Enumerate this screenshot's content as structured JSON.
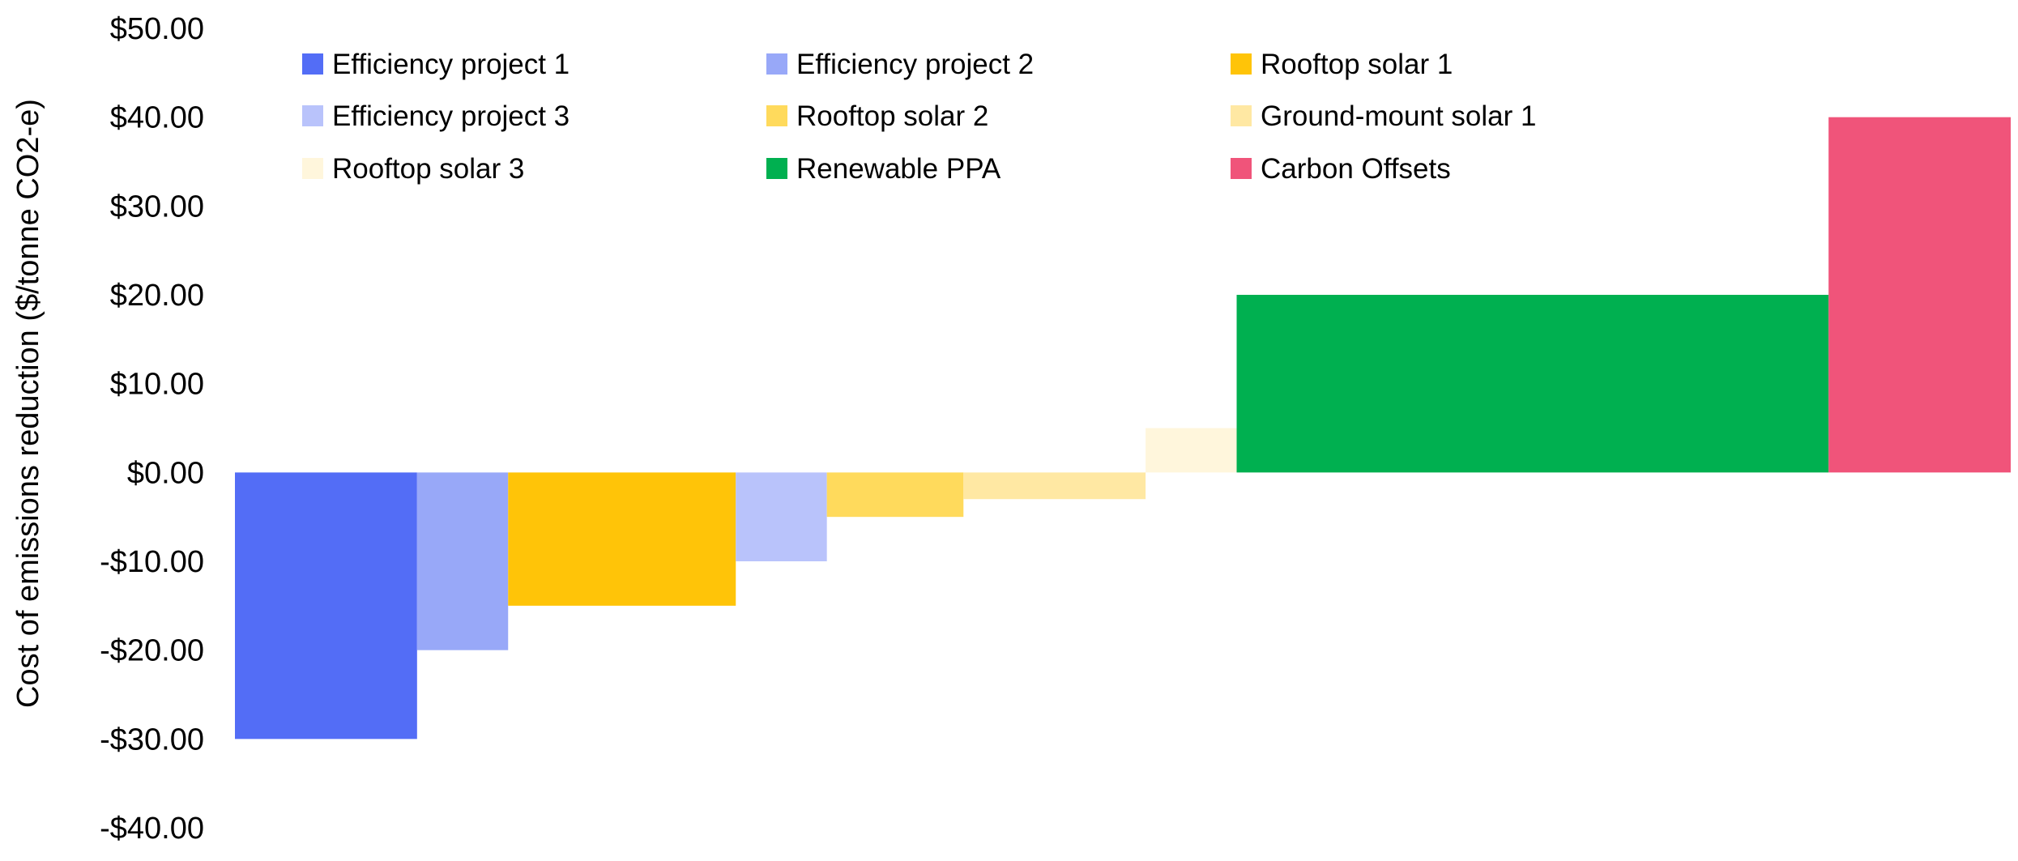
{
  "chart_data": {
    "type": "bar",
    "variant": "marginal-abatement-cost-curve",
    "ylabel": "Cost of emissions reduction ($/tonne CO2-e)",
    "xlabel": "",
    "ylim": [
      -40,
      50
    ],
    "y_ticks": [
      {
        "value": 50,
        "label": "$50.00"
      },
      {
        "value": 40,
        "label": "$40.00"
      },
      {
        "value": 30,
        "label": "$30.00"
      },
      {
        "value": 20,
        "label": "$20.00"
      },
      {
        "value": 10,
        "label": "$10.00"
      },
      {
        "value": 0,
        "label": "$0.00"
      },
      {
        "value": -10,
        "label": "-$10.00"
      },
      {
        "value": -20,
        "label": "-$20.00"
      },
      {
        "value": -30,
        "label": "-$30.00"
      },
      {
        "value": -40,
        "label": "-$40.00"
      }
    ],
    "grid": false,
    "legend_position": "top",
    "series": [
      {
        "name": "Efficiency project 1",
        "value": -30,
        "width": 2,
        "color": "#536DF6"
      },
      {
        "name": "Efficiency project 2",
        "value": -20,
        "width": 1,
        "color": "#98A8F8"
      },
      {
        "name": "Rooftop solar 1",
        "value": -15,
        "width": 2.5,
        "color": "#FFC408"
      },
      {
        "name": "Efficiency project 3",
        "value": -10,
        "width": 1,
        "color": "#B9C3FB"
      },
      {
        "name": "Rooftop solar 2",
        "value": -5,
        "width": 1.5,
        "color": "#FFDA5C"
      },
      {
        "name": "Ground-mount solar 1",
        "value": -3,
        "width": 2,
        "color": "#FFE8A3"
      },
      {
        "name": "Rooftop solar 3",
        "value": 5,
        "width": 1,
        "color": "#FFF6DC"
      },
      {
        "name": "Renewable PPA",
        "value": 20,
        "width": 6.5,
        "color": "#00B050"
      },
      {
        "name": "Carbon Offsets",
        "value": 40,
        "width": 2,
        "color": "#F0547A"
      }
    ],
    "legend_order": [
      "Efficiency project 1",
      "Efficiency project 2",
      "Rooftop solar 1",
      "Efficiency project 3",
      "Rooftop solar 2",
      "Ground-mount solar 1",
      "Rooftop solar 3",
      "Renewable PPA",
      "Carbon Offsets"
    ]
  }
}
